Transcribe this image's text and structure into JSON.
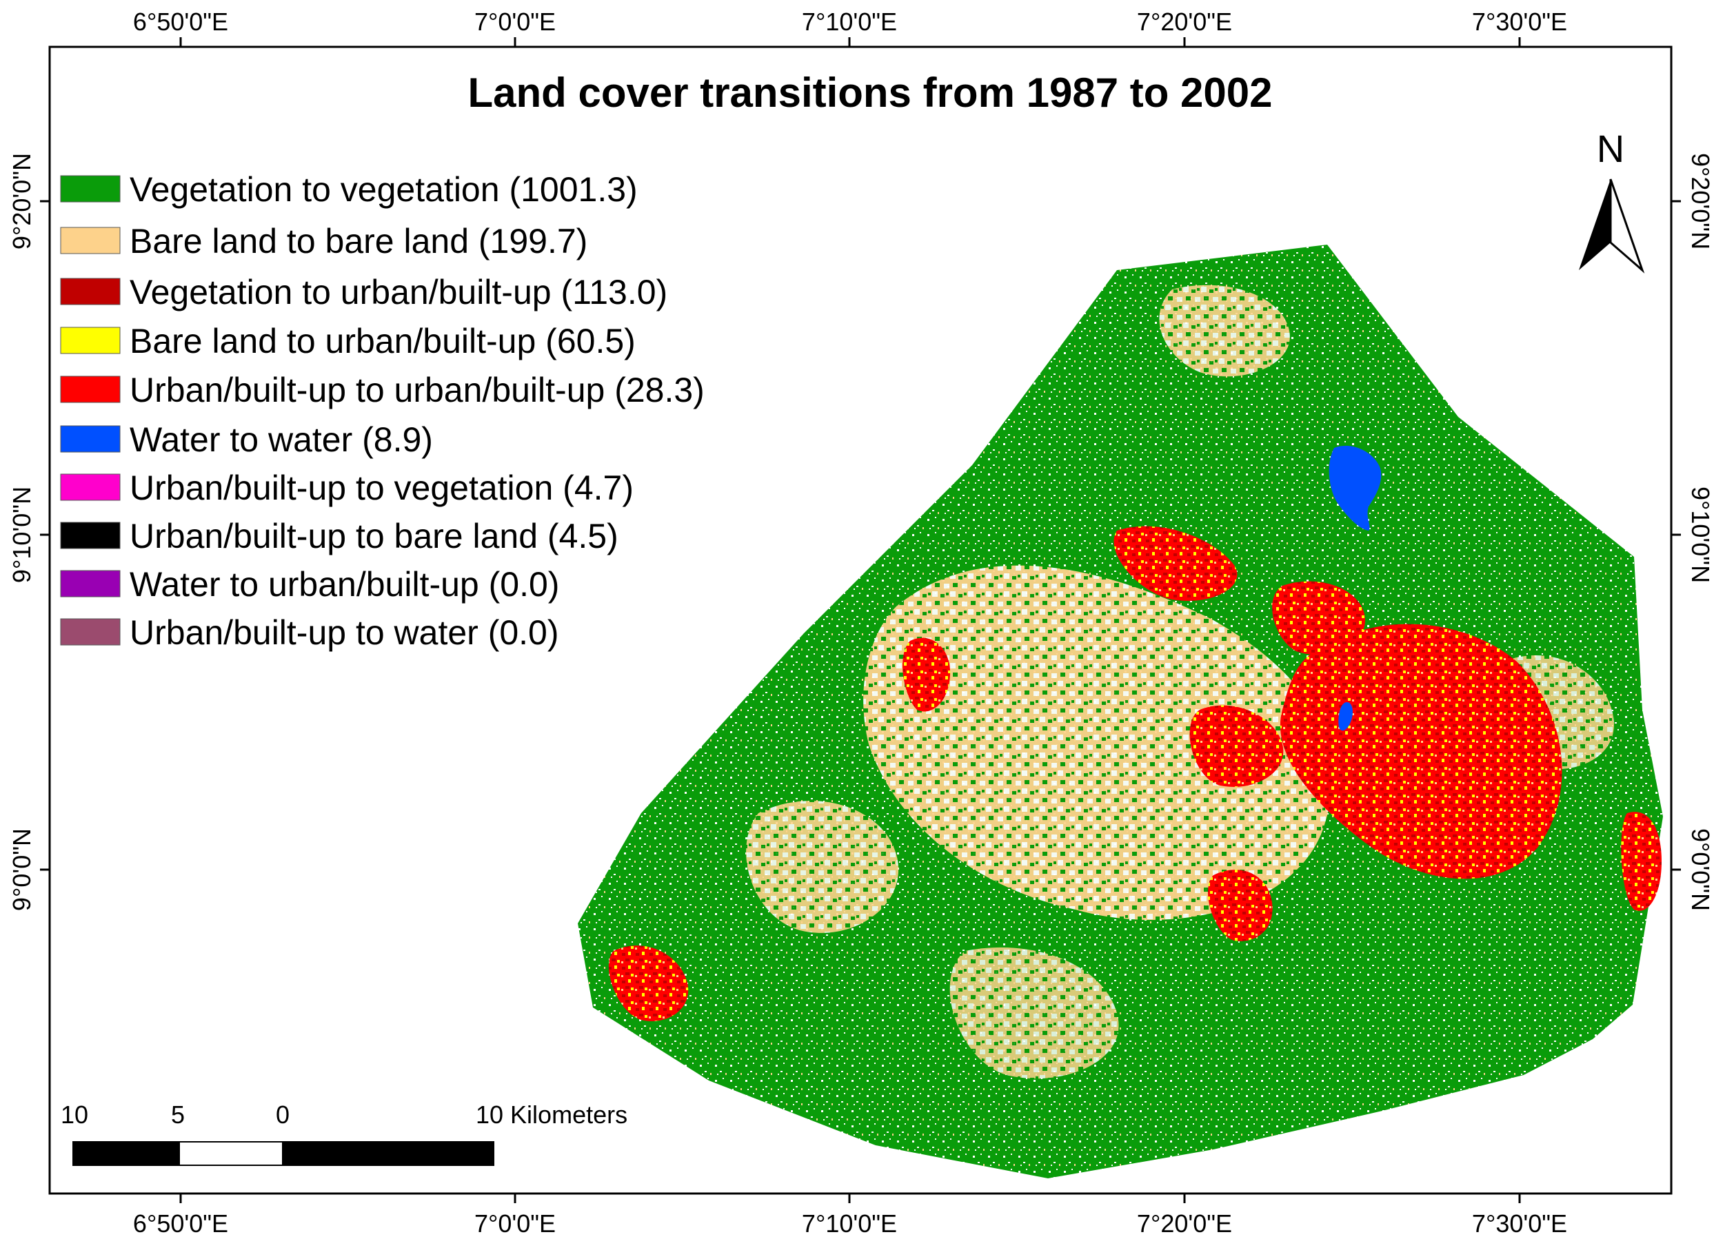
{
  "title": "Land cover transitions from 1987 to 2002",
  "longitude_labels": [
    "6°50'0\"E",
    "7°0'0\"E",
    "7°10'0\"E",
    "7°20'0\"E",
    "7°30'0\"E"
  ],
  "latitude_labels": [
    "9°20'0\"N",
    "9°10'0\"N",
    "9°0'0\"N"
  ],
  "legend": [
    {
      "label": "Vegetation to vegetation (1001.3)",
      "color": "#0a9c0a"
    },
    {
      "label": "Bare land to bare land (199.7)",
      "color": "#fdd28b"
    },
    {
      "label": "Vegetation to urban/built-up (113.0)",
      "color": "#c00000"
    },
    {
      "label": "Bare land to urban/built-up (60.5)",
      "color": "#ffff00"
    },
    {
      "label": "Urban/built-up to urban/built-up (28.3)",
      "color": "#ff0000"
    },
    {
      "label": "Water to water (8.9)",
      "color": "#0050ff"
    },
    {
      "label": "Urban/built-up to vegetation (4.7)",
      "color": "#ff00cc"
    },
    {
      "label": "Urban/built-up to bare land (4.5)",
      "color": "#000000"
    },
    {
      "label": "Water to urban/built-up (0.0)",
      "color": "#9900b3"
    },
    {
      "label": "Urban/built-up to water (0.0)",
      "color": "#9b4b6e"
    }
  ],
  "scale_bar": {
    "labels": [
      "10",
      "5",
      "0",
      "10 Kilometers"
    ]
  },
  "north_arrow": {
    "label": "N"
  }
}
